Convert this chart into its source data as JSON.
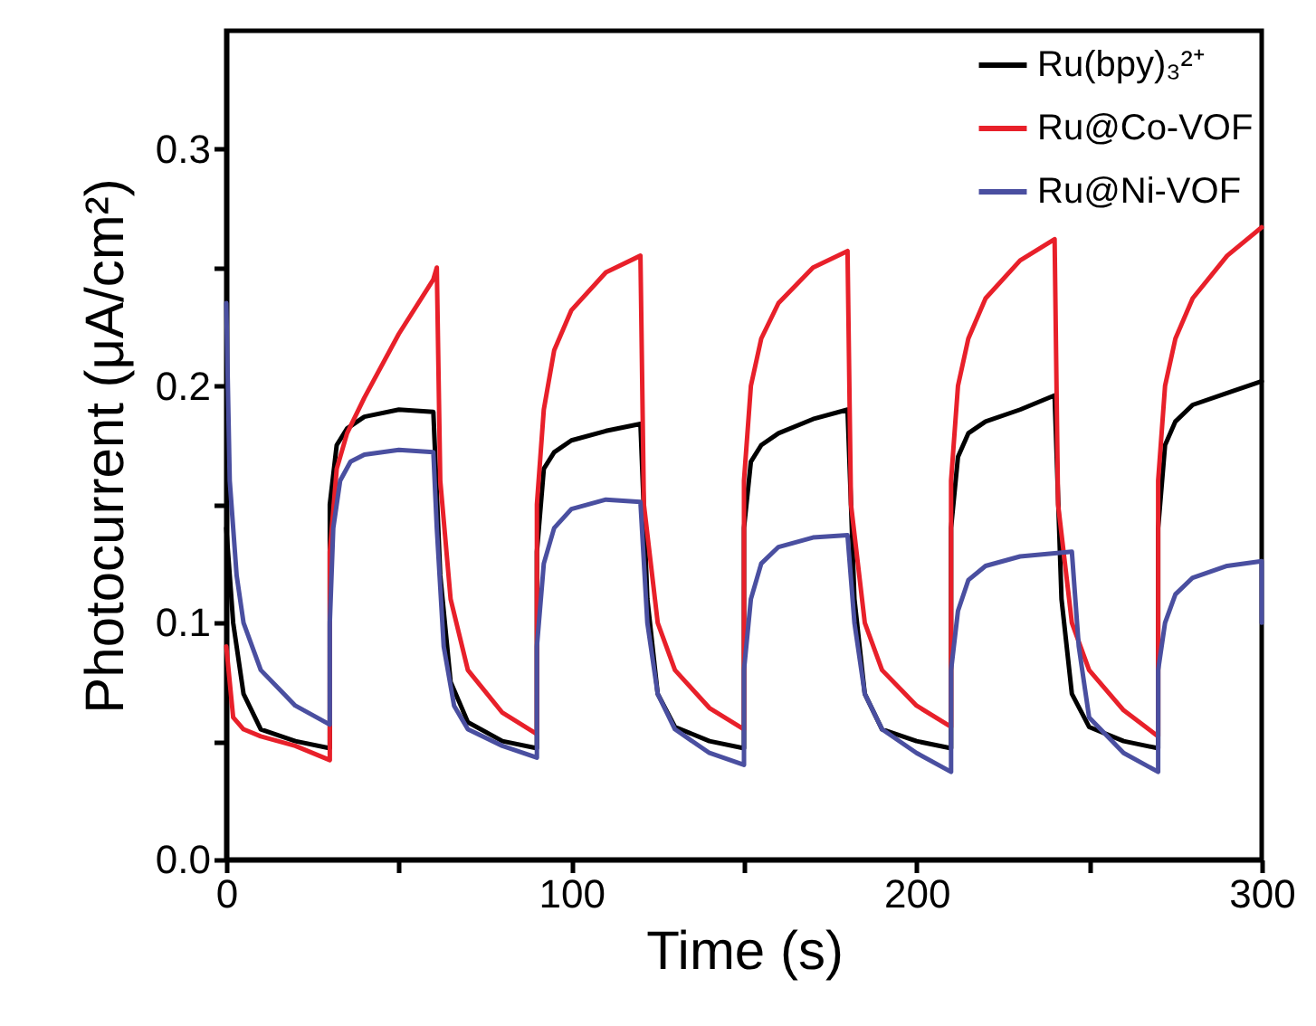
{
  "chart_data": {
    "type": "line",
    "xlabel": "Time (s)",
    "ylabel": "Photocurrent (μA/cm²)",
    "xlim": [
      0,
      300
    ],
    "xticks": [
      0,
      {
        "value": 50,
        "label": null
      },
      100,
      {
        "value": 150,
        "label": null
      },
      200,
      {
        "value": 250,
        "label": null
      },
      300
    ],
    "ylim": [
      0,
      0.35
    ],
    "yticks": [
      {
        "value": 0,
        "label": "0.0"
      },
      {
        "value": 0.05,
        "label": null
      },
      0.1,
      {
        "value": 0.15,
        "label": null
      },
      0.2,
      {
        "value": 0.25,
        "label": null
      },
      0.3
    ],
    "grid": false,
    "legend": "top right",
    "line_style": "solid",
    "marker": "none",
    "series": [
      {
        "name": "Ru(bpy)₃²⁺",
        "color": "#000000",
        "x": [
          0,
          2,
          5,
          10,
          20,
          30,
          30,
          32,
          35,
          40,
          50,
          60,
          62,
          65,
          70,
          80,
          90,
          90,
          92,
          95,
          100,
          110,
          120,
          122,
          125,
          130,
          140,
          150,
          150,
          152,
          155,
          160,
          170,
          180,
          182,
          185,
          190,
          200,
          210,
          210,
          212,
          215,
          220,
          230,
          240,
          242,
          245,
          250,
          260,
          270,
          270,
          272,
          275,
          280,
          290,
          300
        ],
        "values": [
          0.14,
          0.1,
          0.07,
          0.055,
          0.05,
          0.047,
          0.15,
          0.175,
          0.182,
          0.187,
          0.19,
          0.189,
          0.12,
          0.075,
          0.058,
          0.05,
          0.047,
          0.13,
          0.165,
          0.172,
          0.177,
          0.181,
          0.184,
          0.11,
          0.07,
          0.056,
          0.05,
          0.047,
          0.14,
          0.168,
          0.175,
          0.18,
          0.186,
          0.19,
          0.11,
          0.07,
          0.055,
          0.05,
          0.047,
          0.14,
          0.17,
          0.18,
          0.185,
          0.19,
          0.196,
          0.11,
          0.07,
          0.056,
          0.05,
          0.047,
          0.14,
          0.175,
          0.185,
          0.192,
          0.197,
          0.202
        ]
      },
      {
        "name": "Ru@Co-VOF",
        "color": "#e8202a",
        "x": [
          0,
          2,
          5,
          10,
          20,
          30,
          30,
          32,
          35,
          40,
          50,
          60,
          61,
          62,
          65,
          70,
          80,
          90,
          90,
          92,
          95,
          100,
          110,
          120,
          121,
          125,
          130,
          140,
          150,
          150,
          152,
          155,
          160,
          170,
          180,
          181,
          185,
          190,
          200,
          210,
          210,
          212,
          215,
          220,
          230,
          240,
          241,
          245,
          250,
          260,
          270,
          270,
          272,
          275,
          280,
          290,
          300
        ],
        "values": [
          0.09,
          0.06,
          0.055,
          0.052,
          0.048,
          0.042,
          0.13,
          0.165,
          0.18,
          0.195,
          0.222,
          0.245,
          0.25,
          0.16,
          0.11,
          0.08,
          0.062,
          0.053,
          0.15,
          0.19,
          0.215,
          0.232,
          0.248,
          0.255,
          0.15,
          0.1,
          0.08,
          0.064,
          0.055,
          0.16,
          0.2,
          0.22,
          0.235,
          0.25,
          0.257,
          0.15,
          0.1,
          0.08,
          0.065,
          0.056,
          0.16,
          0.2,
          0.22,
          0.237,
          0.253,
          0.262,
          0.15,
          0.1,
          0.08,
          0.063,
          0.052,
          0.16,
          0.2,
          0.22,
          0.237,
          0.255,
          0.267
        ]
      },
      {
        "name": "Ru@Ni-VOF",
        "color": "#4a4fa0",
        "x": [
          0,
          1,
          3,
          5,
          10,
          20,
          30,
          30,
          31,
          33,
          36,
          40,
          50,
          60,
          61,
          63,
          66,
          70,
          80,
          90,
          90,
          92,
          95,
          100,
          110,
          120,
          122,
          125,
          130,
          140,
          150,
          150,
          152,
          155,
          160,
          170,
          180,
          182,
          185,
          190,
          200,
          210,
          210,
          212,
          215,
          220,
          230,
          245,
          247,
          250,
          260,
          270,
          270,
          272,
          275,
          280,
          290,
          300,
          300
        ],
        "values": [
          0.235,
          0.16,
          0.12,
          0.1,
          0.08,
          0.065,
          0.057,
          0.1,
          0.14,
          0.16,
          0.168,
          0.171,
          0.173,
          0.172,
          0.14,
          0.09,
          0.065,
          0.055,
          0.048,
          0.043,
          0.09,
          0.125,
          0.14,
          0.148,
          0.152,
          0.151,
          0.1,
          0.07,
          0.055,
          0.045,
          0.04,
          0.08,
          0.11,
          0.125,
          0.132,
          0.136,
          0.137,
          0.1,
          0.07,
          0.055,
          0.045,
          0.037,
          0.08,
          0.105,
          0.118,
          0.124,
          0.128,
          0.13,
          0.09,
          0.06,
          0.045,
          0.037,
          0.08,
          0.1,
          0.112,
          0.119,
          0.124,
          0.126,
          0.1
        ]
      }
    ]
  }
}
